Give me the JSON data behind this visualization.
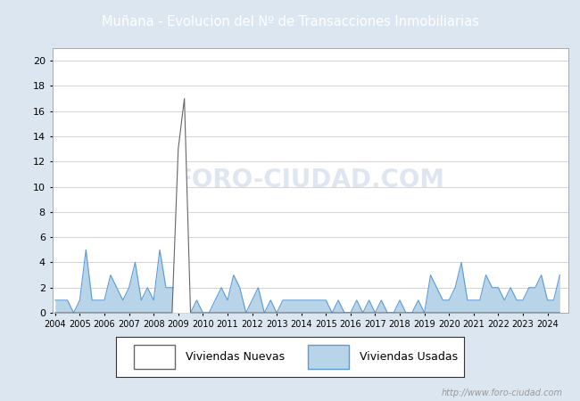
{
  "title": "Muñana - Evolucion del Nº de Transacciones Inmobiliarias",
  "title_bg_color": "#4472c4",
  "title_text_color": "#ffffff",
  "ylim": [
    0,
    21
  ],
  "yticks": [
    0,
    2,
    4,
    6,
    8,
    10,
    12,
    14,
    16,
    18,
    20
  ],
  "grid_color": "#cccccc",
  "plot_bg_color": "#ffffff",
  "fig_bg_color": "#dce6f1",
  "watermark": "http://www.foro-ciudad.com",
  "legend_labels": [
    "Viviendas Nuevas",
    "Viviendas Usadas"
  ],
  "nuevas_color": "#ffffff",
  "nuevas_edge_color": "#666666",
  "usadas_color": "#b8d4e8",
  "usadas_edge_color": "#5b9bd5",
  "years": [
    2004,
    2005,
    2006,
    2007,
    2008,
    2009,
    2010,
    2011,
    2012,
    2013,
    2014,
    2015,
    2016,
    2017,
    2018,
    2019,
    2020,
    2021,
    2022,
    2023,
    2024
  ],
  "nuevas_data": {
    "2004": [
      0,
      0,
      0,
      0
    ],
    "2005": [
      0,
      0,
      0,
      0
    ],
    "2006": [
      0,
      0,
      0,
      0
    ],
    "2007": [
      0,
      0,
      0,
      0
    ],
    "2008": [
      0,
      0,
      0,
      0
    ],
    "2009": [
      13,
      17,
      0,
      0
    ],
    "2010": [
      0,
      0,
      0,
      0
    ],
    "2011": [
      0,
      0,
      0,
      0
    ],
    "2012": [
      0,
      0,
      0,
      0
    ],
    "2013": [
      0,
      0,
      0,
      0
    ],
    "2014": [
      0,
      0,
      0,
      0
    ],
    "2015": [
      0,
      0,
      0,
      0
    ],
    "2016": [
      0,
      0,
      0,
      0
    ],
    "2017": [
      0,
      0,
      0,
      0
    ],
    "2018": [
      0,
      0,
      0,
      0
    ],
    "2019": [
      0,
      0,
      0,
      0
    ],
    "2020": [
      0,
      0,
      0,
      0
    ],
    "2021": [
      0,
      0,
      0,
      0
    ],
    "2022": [
      0,
      0,
      0,
      0
    ],
    "2023": [
      0,
      0,
      0,
      0
    ],
    "2024": [
      0,
      0,
      0
    ]
  },
  "usadas_data": {
    "2004": [
      1,
      1,
      1,
      0
    ],
    "2005": [
      1,
      5,
      1,
      1
    ],
    "2006": [
      1,
      3,
      2,
      1
    ],
    "2007": [
      2,
      4,
      1,
      2
    ],
    "2008": [
      1,
      5,
      2,
      2
    ],
    "2009": [
      2,
      1,
      0,
      1
    ],
    "2010": [
      0,
      0,
      1,
      2
    ],
    "2011": [
      1,
      3,
      2,
      0
    ],
    "2012": [
      1,
      2,
      0,
      1
    ],
    "2013": [
      0,
      1,
      1,
      1
    ],
    "2014": [
      1,
      1,
      1,
      1
    ],
    "2015": [
      1,
      0,
      1,
      0
    ],
    "2016": [
      0,
      1,
      0,
      1
    ],
    "2017": [
      0,
      1,
      0,
      0
    ],
    "2018": [
      1,
      0,
      0,
      1
    ],
    "2019": [
      0,
      3,
      2,
      1
    ],
    "2020": [
      1,
      2,
      4,
      1
    ],
    "2021": [
      1,
      1,
      3,
      2
    ],
    "2022": [
      2,
      1,
      2,
      1
    ],
    "2023": [
      1,
      2,
      2,
      3
    ],
    "2024": [
      1,
      1,
      3
    ]
  }
}
